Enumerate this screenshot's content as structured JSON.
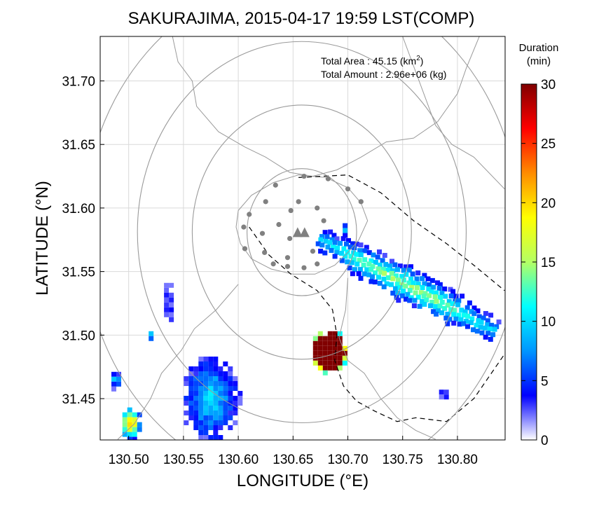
{
  "chart_data": {
    "type": "heatmap",
    "title": "SAKURAJIMA, 2015-04-17 19:59 LST(COMP)",
    "xlabel": "LONGITUDE (°E)",
    "ylabel": "LATITUDE (°N)",
    "xlim": [
      130.474,
      130.8435
    ],
    "ylim": [
      31.4175,
      31.735
    ],
    "x_ticks": [
      130.5,
      130.55,
      130.6,
      130.65,
      130.7,
      130.75,
      130.8
    ],
    "x_tick_labels": [
      "130.50",
      "130.55",
      "130.60",
      "130.65",
      "130.70",
      "130.75",
      "130.80"
    ],
    "y_ticks": [
      31.45,
      31.5,
      31.55,
      31.6,
      31.65,
      31.7
    ],
    "y_tick_labels": [
      "31.45",
      "31.50",
      "31.55",
      "31.60",
      "31.65",
      "31.70"
    ],
    "grid": true,
    "annotations": {
      "area_line": "Total Area   : 45.15 (km",
      "area_sup": "2",
      "area_end": ")",
      "amount_line": "Total Amount : 2.96e+06 (kg)"
    },
    "colorbar": {
      "title_line1": "Duration",
      "title_line2": "(min)",
      "min": 0,
      "max": 30,
      "ticks": [
        0,
        5,
        10,
        15,
        20,
        25,
        30
      ],
      "tick_labels": [
        "0",
        "5",
        "10",
        "15",
        "20",
        "25",
        "30"
      ],
      "colors": [
        "#ffffff",
        "#0000ff",
        "#0096ff",
        "#00ffff",
        "#b4ff64",
        "#ffff00",
        "#ff8c00",
        "#ff0000",
        "#800000"
      ]
    },
    "vent": {
      "lon": 130.658,
      "lat": 31.581
    },
    "range_ring_radii_deg": [
      0.05,
      0.1,
      0.15,
      0.2
    ],
    "station_points": [
      {
        "lon": 130.66,
        "lat": 31.625
      },
      {
        "lon": 130.682,
        "lat": 31.623
      },
      {
        "lon": 130.634,
        "lat": 31.618
      },
      {
        "lon": 130.7,
        "lat": 31.615
      },
      {
        "lon": 130.625,
        "lat": 31.605
      },
      {
        "lon": 130.712,
        "lat": 31.605
      },
      {
        "lon": 130.61,
        "lat": 31.595
      },
      {
        "lon": 130.655,
        "lat": 31.605
      },
      {
        "lon": 130.648,
        "lat": 31.598
      },
      {
        "lon": 130.672,
        "lat": 31.6
      },
      {
        "lon": 130.605,
        "lat": 31.585
      },
      {
        "lon": 130.637,
        "lat": 31.587
      },
      {
        "lon": 130.622,
        "lat": 31.58
      },
      {
        "lon": 130.647,
        "lat": 31.576
      },
      {
        "lon": 130.678,
        "lat": 31.59
      },
      {
        "lon": 130.606,
        "lat": 31.568
      },
      {
        "lon": 130.624,
        "lat": 31.565
      },
      {
        "lon": 130.645,
        "lat": 31.561
      },
      {
        "lon": 130.668,
        "lat": 31.566
      },
      {
        "lon": 130.632,
        "lat": 31.556
      },
      {
        "lon": 130.645,
        "lat": 31.554
      },
      {
        "lon": 130.66,
        "lat": 31.553
      },
      {
        "lon": 130.672,
        "lat": 31.556
      }
    ],
    "series": [
      {
        "kind": "swath",
        "from": [
          130.675,
          31.575
        ],
        "to": [
          130.836,
          31.502
        ],
        "value_center": 11,
        "width_deg": 0.013
      },
      {
        "kind": "blob",
        "lon": 130.683,
        "lat": 31.487,
        "rx": 0.017,
        "ry": 0.018,
        "value": 30
      },
      {
        "kind": "blob",
        "lon": 130.575,
        "lat": 31.45,
        "rx": 0.027,
        "ry": 0.035,
        "value": 11
      },
      {
        "kind": "blob",
        "lon": 130.502,
        "lat": 31.431,
        "rx": 0.01,
        "ry": 0.014,
        "value": 24
      },
      {
        "kind": "blob",
        "lon": 130.488,
        "lat": 31.465,
        "rx": 0.006,
        "ry": 0.008,
        "value": 10
      },
      {
        "kind": "blob",
        "lon": 130.52,
        "lat": 31.5,
        "rx": 0.004,
        "ry": 0.005,
        "value": 11
      },
      {
        "kind": "blob",
        "lon": 130.536,
        "lat": 31.525,
        "rx": 0.006,
        "ry": 0.018,
        "value": 5
      },
      {
        "kind": "blob",
        "lon": 130.697,
        "lat": 31.583,
        "rx": 0.004,
        "ry": 0.007,
        "value": 9
      },
      {
        "kind": "blob",
        "lon": 130.787,
        "lat": 31.453,
        "rx": 0.006,
        "ry": 0.006,
        "value": 4
      }
    ]
  }
}
